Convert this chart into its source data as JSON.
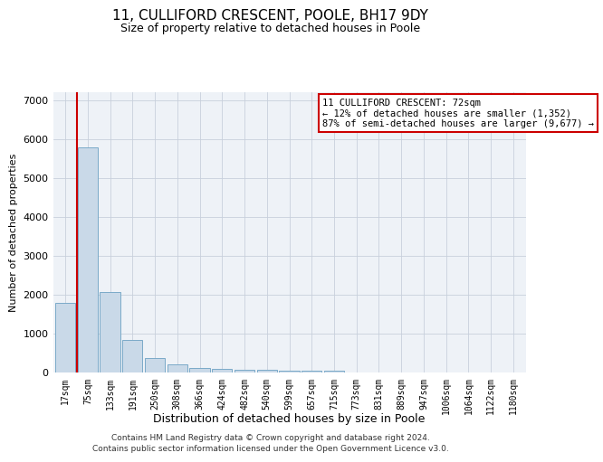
{
  "title1": "11, CULLIFORD CRESCENT, POOLE, BH17 9DY",
  "title2": "Size of property relative to detached houses in Poole",
  "xlabel": "Distribution of detached houses by size in Poole",
  "ylabel": "Number of detached properties",
  "bar_labels": [
    "17sqm",
    "75sqm",
    "133sqm",
    "191sqm",
    "250sqm",
    "308sqm",
    "366sqm",
    "424sqm",
    "482sqm",
    "540sqm",
    "599sqm",
    "657sqm",
    "715sqm",
    "773sqm",
    "831sqm",
    "889sqm",
    "947sqm",
    "1006sqm",
    "1064sqm",
    "1122sqm",
    "1180sqm"
  ],
  "bar_values": [
    1780,
    5780,
    2060,
    840,
    380,
    220,
    110,
    100,
    70,
    60,
    55,
    50,
    40,
    0,
    0,
    0,
    0,
    0,
    0,
    0,
    0
  ],
  "bar_color": "#c9d9e8",
  "bar_edge_color": "#7aaac8",
  "annotation_text": "11 CULLIFORD CRESCENT: 72sqm\n← 12% of detached houses are smaller (1,352)\n87% of semi-detached houses are larger (9,677) →",
  "annotation_box_color": "#ffffff",
  "annotation_box_edge_color": "#cc0000",
  "property_line_x": 0.5,
  "ylim": [
    0,
    7200
  ],
  "yticks": [
    0,
    1000,
    2000,
    3000,
    4000,
    5000,
    6000,
    7000
  ],
  "footnote1": "Contains HM Land Registry data © Crown copyright and database right 2024.",
  "footnote2": "Contains public sector information licensed under the Open Government Licence v3.0.",
  "plot_bg_color": "#eef2f7",
  "grid_color": "#c8d0dc"
}
